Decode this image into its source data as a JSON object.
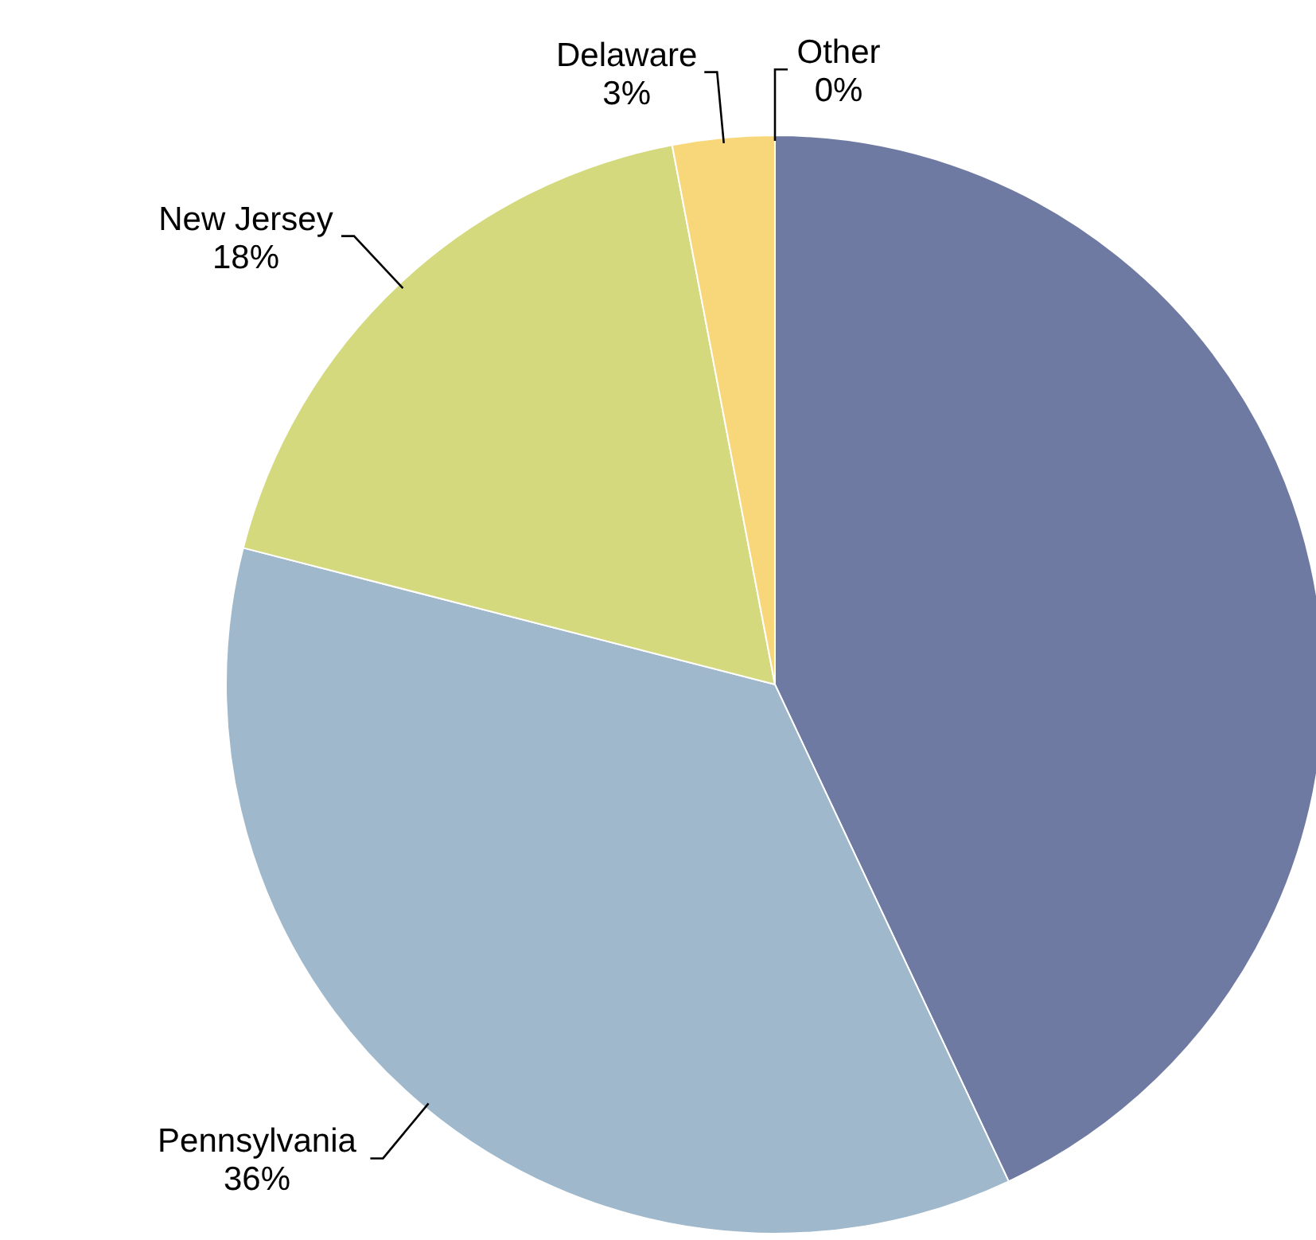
{
  "chart_data": {
    "type": "pie",
    "categories": [
      null,
      "Pennsylvania",
      "New Jersey",
      "Delaware",
      "Other"
    ],
    "values": [
      43,
      36,
      18,
      3,
      0
    ],
    "value_labels": [
      null,
      "36%",
      "18%",
      "3%",
      "0%"
    ],
    "colors": [
      "#6f7aa3",
      "#9fb8cb",
      "#d3d97c",
      "#f8d77b",
      "#b0b0b0"
    ]
  }
}
